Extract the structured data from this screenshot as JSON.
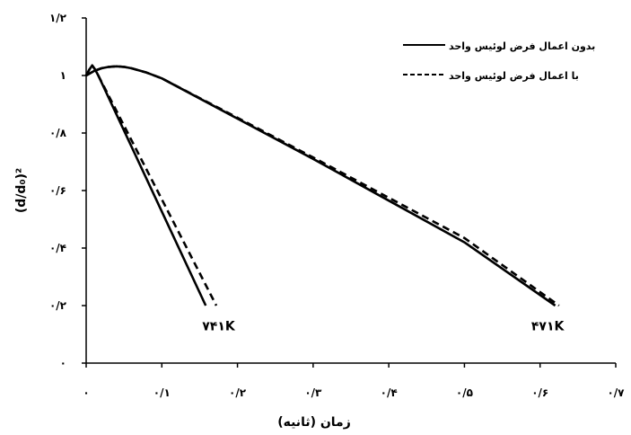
{
  "chart_data": {
    "type": "line",
    "xlabel": "زمان (ثانیه)",
    "ylabel": "(d/d₀)²",
    "xlim": [
      0,
      0.7
    ],
    "ylim": [
      0,
      1.2
    ],
    "x_ticks": [
      0,
      0.1,
      0.2,
      0.3,
      0.4,
      0.5,
      0.6,
      0.7
    ],
    "x_tick_labels": [
      "٠",
      "٠/۱",
      "٠/۲",
      "٠/۳",
      "٠/۴",
      "٠/۵",
      "٠/۶",
      "٠/۷"
    ],
    "y_ticks": [
      0,
      0.2,
      0.4,
      0.6,
      0.8,
      1.0,
      1.2
    ],
    "y_tick_labels": [
      "٠",
      "٠/۲",
      "٠/۴",
      "٠/۶",
      "٠/۸",
      "۱",
      "۱/۲"
    ],
    "grid": false,
    "legend_position": "top-right",
    "legend": [
      "بدون اعمال فرض لوئیس واحد",
      "با اعمال فرض لوئیس واحد"
    ],
    "series": [
      {
        "name": "بدون اعمال فرض لوئیس واحد",
        "style": "solid",
        "color": "#000000",
        "x": [
          0,
          0.004,
          0.008,
          0.012,
          0.016,
          0.158
        ],
        "y": [
          1.0,
          1.02,
          1.035,
          1.02,
          1.0,
          0.2
        ]
      },
      {
        "name": "با اعمال فرض لوئیس واحد",
        "style": "dashed",
        "color": "#000000",
        "x": [
          0,
          0.004,
          0.008,
          0.012,
          0.016,
          0.172
        ],
        "y": [
          1.0,
          1.02,
          1.035,
          1.02,
          1.0,
          0.2
        ]
      },
      {
        "name": "بدون اعمال فرض لوئیس واحد",
        "style": "solid",
        "color": "#000000",
        "x": [
          0,
          0.01,
          0.02,
          0.03,
          0.04,
          0.05,
          0.06,
          0.08,
          0.1,
          0.2,
          0.3,
          0.4,
          0.5,
          0.62
        ],
        "y": [
          1.0,
          1.015,
          1.025,
          1.03,
          1.032,
          1.03,
          1.025,
          1.01,
          0.99,
          0.85,
          0.71,
          0.565,
          0.42,
          0.2
        ]
      },
      {
        "name": "با اعمال فرض لوئیس واحد",
        "style": "dashed",
        "color": "#000000",
        "x": [
          0,
          0.01,
          0.02,
          0.03,
          0.04,
          0.05,
          0.06,
          0.08,
          0.1,
          0.2,
          0.3,
          0.4,
          0.5,
          0.625
        ],
        "y": [
          1.0,
          1.015,
          1.025,
          1.03,
          1.032,
          1.03,
          1.025,
          1.01,
          0.99,
          0.853,
          0.715,
          0.575,
          0.435,
          0.2
        ]
      }
    ],
    "annotations": [
      {
        "text": "۷۴۱K",
        "x": 0.175,
        "y": 0.13
      },
      {
        "text": "۴۷۱K",
        "x": 0.61,
        "y": 0.13
      }
    ]
  }
}
